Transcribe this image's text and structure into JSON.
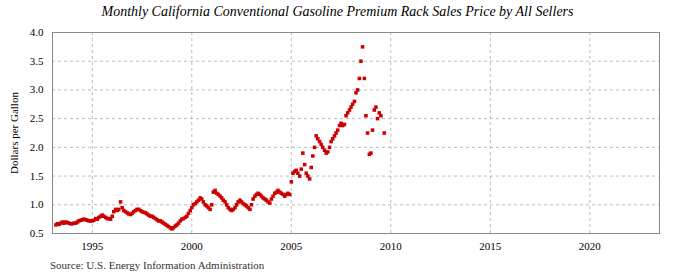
{
  "chart_data": {
    "type": "scatter",
    "title": "Monthly California Conventional Gasoline Premium Rack Sales Price by All Sellers",
    "ylabel": "Dollars per Gallon",
    "annotation": "Source: U.S. Energy Information Administration",
    "color": "#CC0000",
    "marker": "square",
    "grid": true,
    "xlim": [
      1993.0,
      2023.5
    ],
    "xticks": [
      1995,
      2000,
      2005,
      2010,
      2015,
      2020
    ],
    "ylim": [
      0.5,
      4.0
    ],
    "yticks": [
      0.5,
      {
        "value": 1.0,
        "label": "1.0"
      },
      1.5,
      {
        "value": 2.0,
        "label": "2.0"
      },
      2.5,
      {
        "value": 3.0,
        "label": "3.0"
      },
      3.5,
      {
        "value": 4.0,
        "label": "4.0"
      }
    ],
    "x": [
      1993.17,
      1993.25,
      1993.33,
      1993.42,
      1993.5,
      1993.58,
      1993.67,
      1993.75,
      1993.83,
      1993.92,
      1994.0,
      1994.08,
      1994.17,
      1994.25,
      1994.33,
      1994.42,
      1994.5,
      1994.58,
      1994.67,
      1994.75,
      1994.83,
      1994.92,
      1995.0,
      1995.08,
      1995.17,
      1995.25,
      1995.33,
      1995.42,
      1995.5,
      1995.58,
      1995.67,
      1995.75,
      1995.83,
      1995.92,
      1996.0,
      1996.08,
      1996.17,
      1996.25,
      1996.33,
      1996.42,
      1996.5,
      1996.58,
      1996.67,
      1996.75,
      1996.83,
      1996.92,
      1997.0,
      1997.08,
      1997.17,
      1997.25,
      1997.33,
      1997.42,
      1997.5,
      1997.58,
      1997.67,
      1997.75,
      1997.83,
      1997.92,
      1998.0,
      1998.08,
      1998.17,
      1998.25,
      1998.33,
      1998.42,
      1998.5,
      1998.58,
      1998.67,
      1998.75,
      1998.83,
      1998.92,
      1999.0,
      1999.08,
      1999.17,
      1999.25,
      1999.33,
      1999.42,
      1999.5,
      1999.58,
      1999.67,
      1999.75,
      1999.83,
      1999.92,
      2000.0,
      2000.08,
      2000.17,
      2000.25,
      2000.33,
      2000.42,
      2000.5,
      2000.58,
      2000.67,
      2000.75,
      2000.83,
      2000.92,
      2001.0,
      2001.08,
      2001.17,
      2001.25,
      2001.33,
      2001.42,
      2001.5,
      2001.58,
      2001.67,
      2001.75,
      2001.83,
      2001.92,
      2002.0,
      2002.08,
      2002.17,
      2002.25,
      2002.33,
      2002.42,
      2002.5,
      2002.58,
      2002.67,
      2002.75,
      2002.83,
      2002.92,
      2003.0,
      2003.08,
      2003.17,
      2003.25,
      2003.33,
      2003.42,
      2003.5,
      2003.58,
      2003.67,
      2003.75,
      2003.83,
      2003.92,
      2004.0,
      2004.08,
      2004.17,
      2004.25,
      2004.33,
      2004.42,
      2004.5,
      2004.58,
      2004.67,
      2004.75,
      2004.83,
      2004.92,
      2005.0,
      2005.08,
      2005.17,
      2005.25,
      2005.33,
      2005.42,
      2005.5,
      2005.58,
      2005.67,
      2005.75,
      2005.83,
      2005.92,
      2006.0,
      2006.08,
      2006.17,
      2006.25,
      2006.33,
      2006.42,
      2006.5,
      2006.58,
      2006.67,
      2006.75,
      2006.83,
      2006.92,
      2007.0,
      2007.08,
      2007.17,
      2007.25,
      2007.33,
      2007.42,
      2007.5,
      2007.58,
      2007.67,
      2007.75,
      2007.83,
      2007.92,
      2008.0,
      2008.08,
      2008.17,
      2008.25,
      2008.33,
      2008.42,
      2008.5,
      2008.58,
      2008.67,
      2008.75,
      2008.83,
      2008.92,
      2009.0,
      2009.08,
      2009.17,
      2009.25,
      2009.33,
      2009.42,
      2009.5,
      2009.67
    ],
    "values": [
      0.65,
      0.67,
      0.66,
      0.68,
      0.7,
      0.68,
      0.7,
      0.69,
      0.68,
      0.67,
      0.67,
      0.68,
      0.68,
      0.7,
      0.72,
      0.73,
      0.74,
      0.75,
      0.74,
      0.73,
      0.72,
      0.72,
      0.72,
      0.73,
      0.76,
      0.75,
      0.78,
      0.8,
      0.82,
      0.8,
      0.78,
      0.76,
      0.76,
      0.75,
      0.8,
      0.88,
      0.92,
      0.9,
      0.92,
      1.05,
      0.95,
      0.9,
      0.88,
      0.86,
      0.84,
      0.83,
      0.85,
      0.88,
      0.9,
      0.92,
      0.92,
      0.9,
      0.88,
      0.87,
      0.86,
      0.84,
      0.82,
      0.8,
      0.8,
      0.78,
      0.76,
      0.74,
      0.72,
      0.72,
      0.7,
      0.68,
      0.66,
      0.64,
      0.62,
      0.6,
      0.58,
      0.6,
      0.63,
      0.65,
      0.68,
      0.72,
      0.75,
      0.76,
      0.78,
      0.8,
      0.85,
      0.9,
      0.95,
      1.0,
      1.02,
      1.05,
      1.08,
      1.12,
      1.1,
      1.05,
      1.0,
      0.98,
      0.95,
      0.92,
      1.0,
      1.22,
      1.25,
      1.2,
      1.18,
      1.15,
      1.12,
      1.08,
      1.05,
      1.0,
      0.95,
      0.92,
      0.9,
      0.92,
      0.95,
      1.0,
      1.05,
      1.08,
      1.05,
      1.02,
      1.0,
      0.98,
      0.95,
      0.92,
      1.0,
      1.1,
      1.15,
      1.18,
      1.2,
      1.18,
      1.15,
      1.12,
      1.1,
      1.08,
      1.05,
      1.03,
      1.1,
      1.15,
      1.2,
      1.22,
      1.25,
      1.22,
      1.2,
      1.18,
      1.15,
      1.18,
      1.2,
      1.18,
      1.4,
      1.55,
      1.58,
      1.6,
      1.55,
      1.5,
      1.62,
      1.9,
      1.7,
      1.55,
      1.5,
      1.45,
      1.65,
      1.85,
      2.0,
      2.2,
      2.15,
      2.1,
      2.05,
      2.0,
      1.95,
      1.9,
      1.92,
      2.0,
      2.1,
      2.15,
      2.2,
      2.25,
      2.3,
      2.38,
      2.42,
      2.38,
      2.4,
      2.55,
      2.6,
      2.65,
      2.7,
      2.75,
      2.8,
      2.95,
      3.0,
      3.2,
      3.5,
      3.75,
      3.2,
      2.55,
      2.25,
      1.88,
      1.9,
      2.3,
      2.65,
      2.7,
      2.5,
      2.6,
      2.55,
      2.25
    ]
  }
}
